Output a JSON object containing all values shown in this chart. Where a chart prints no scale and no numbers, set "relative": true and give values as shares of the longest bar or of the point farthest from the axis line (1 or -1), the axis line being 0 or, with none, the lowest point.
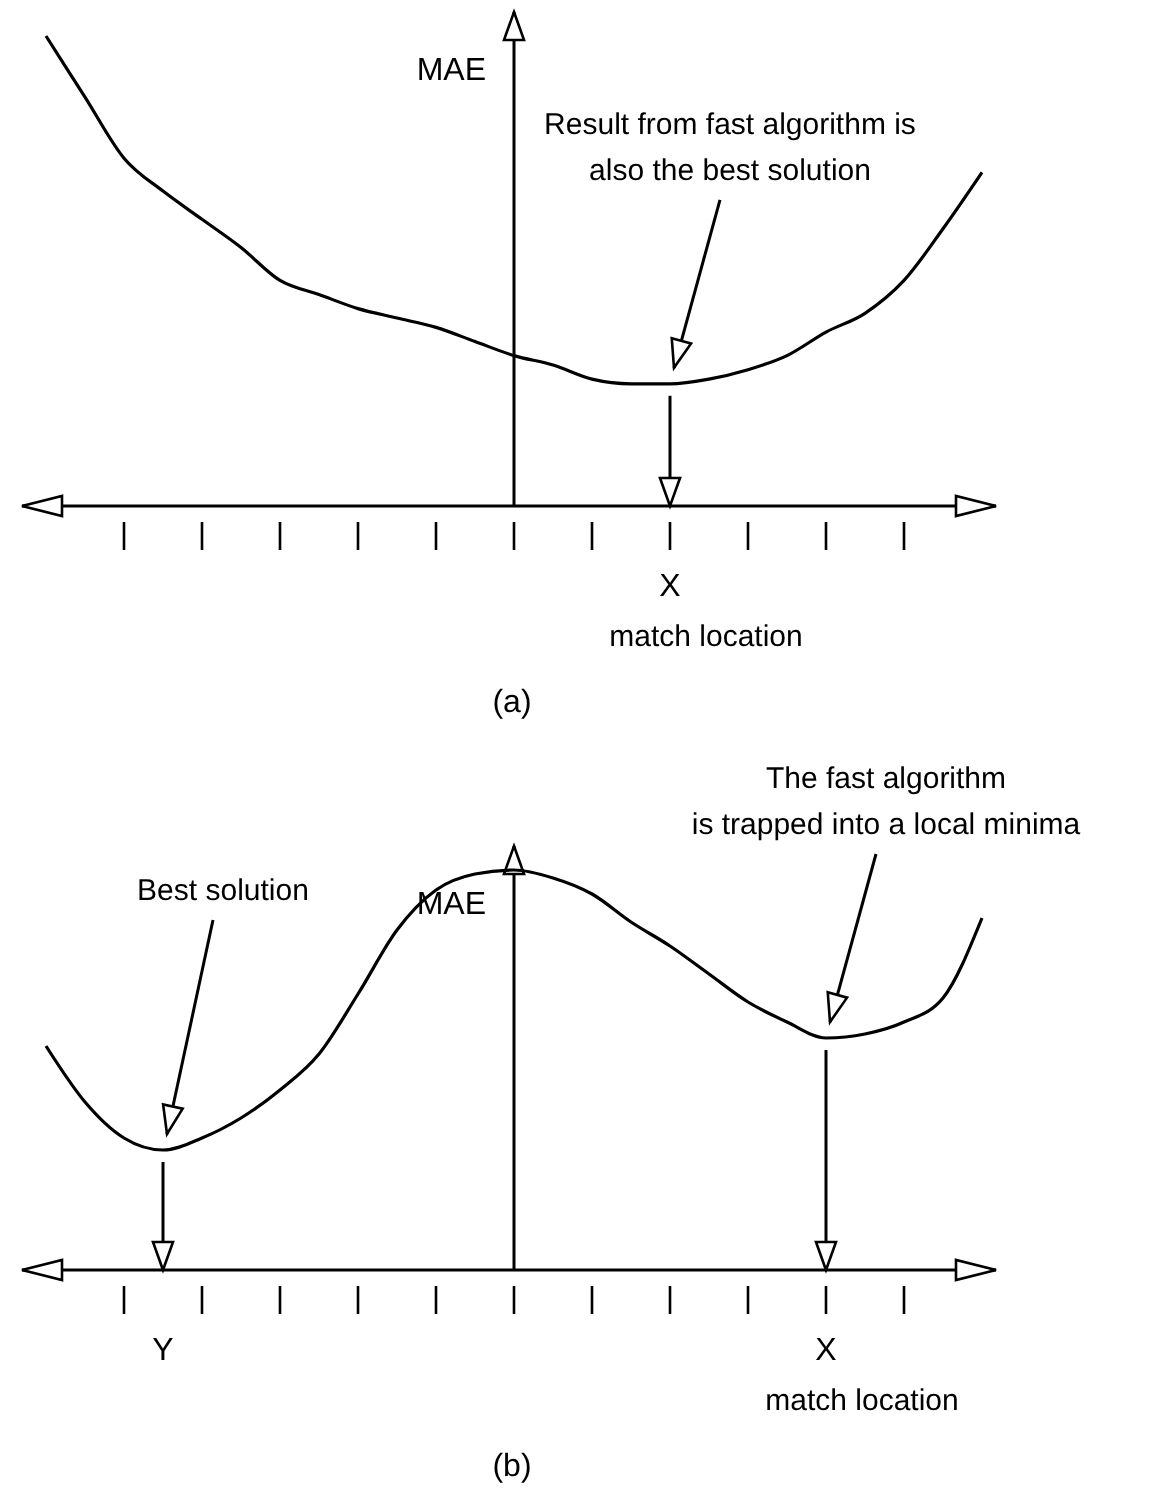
{
  "chart_data": [
    {
      "type": "line",
      "title": "(a)",
      "xlabel": "match location",
      "ylabel": "MAE",
      "relative": true,
      "categories": [
        null,
        null,
        null,
        null,
        null,
        null,
        null,
        null,
        null,
        null,
        null,
        null,
        null,
        null,
        null,
        null,
        null,
        null,
        null,
        null,
        null,
        null,
        null,
        null,
        null
      ],
      "series": [
        {
          "color": "#000000",
          "values": [
            1,
            0.87,
            0.74,
            0.67,
            0.61,
            0.55,
            0.48,
            0.45,
            0.42,
            0.4,
            0.38,
            0.35,
            0.32,
            0.3,
            0.27,
            0.26,
            0.26,
            0.27,
            0.29,
            0.32,
            0.37,
            0.41,
            0.48,
            0.59,
            0.71
          ]
        }
      ],
      "annotations": [
        "Result from fast algorithm is\nalso the best solution",
        "X"
      ]
    },
    {
      "type": "line",
      "title": "(b)",
      "xlabel": "match location",
      "ylabel": "MAE",
      "relative": true,
      "categories": [
        null,
        null,
        null,
        null,
        null,
        null,
        null,
        null,
        null,
        null,
        null,
        null,
        null,
        null,
        null,
        null,
        null,
        null,
        null,
        null,
        null,
        null,
        null,
        null,
        null
      ],
      "series": [
        {
          "color": "#000000",
          "values": [
            0.56,
            0.42,
            0.33,
            0.3,
            0.33,
            0.38,
            0.45,
            0.54,
            0.69,
            0.85,
            0.95,
            0.99,
            1,
            0.98,
            0.94,
            0.87,
            0.81,
            0.74,
            0.67,
            0.62,
            0.58,
            0.59,
            0.62,
            0.68,
            0.88
          ]
        }
      ],
      "annotations": [
        "Best solution",
        "The fast algorithm\nis trapped into a local minima",
        "Y",
        "X"
      ]
    }
  ]
}
